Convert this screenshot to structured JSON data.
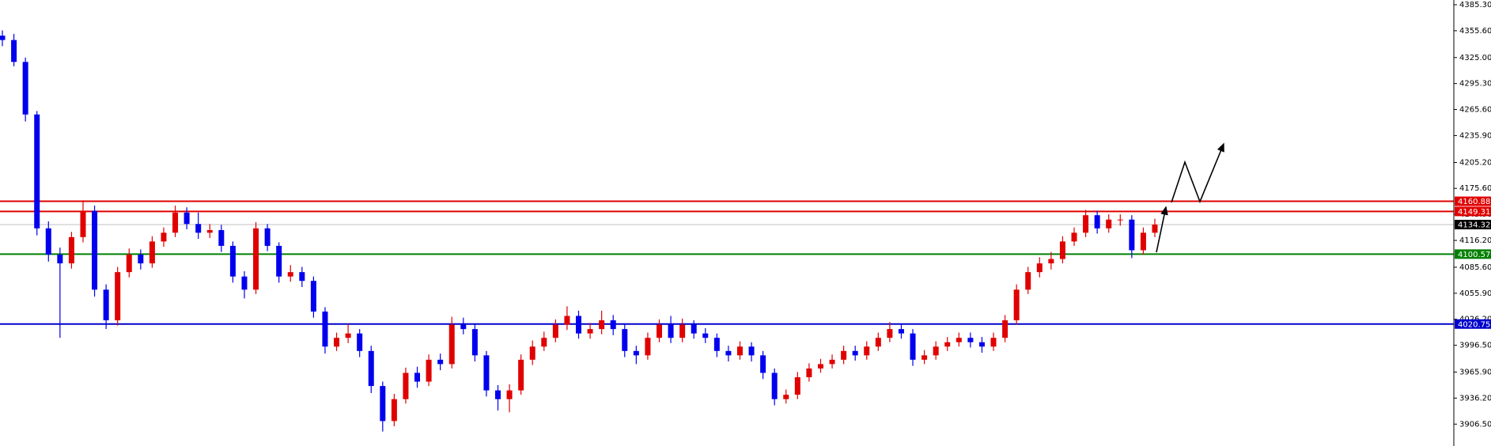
{
  "chart_data": {
    "type": "candlestick",
    "up_color": "#e00000",
    "down_color": "#0000ee",
    "ylim": [
      3881.5,
      4390.7
    ],
    "yticks": [
      {
        "value": 4385.3,
        "label": "4385.30"
      },
      {
        "value": 4355.6,
        "label": "4355.60"
      },
      {
        "value": 4325.0,
        "label": "4325.00"
      },
      {
        "value": 4295.3,
        "label": "4295.30"
      },
      {
        "value": 4265.6,
        "label": "4265.60"
      },
      {
        "value": 4235.9,
        "label": "4235.90"
      },
      {
        "value": 4205.2,
        "label": "4205.20"
      },
      {
        "value": 4175.6,
        "label": "4175.60"
      },
      {
        "value": 4145.9,
        "label": "4145.90"
      },
      {
        "value": 4116.2,
        "label": "4116.20"
      },
      {
        "value": 4085.6,
        "label": "4085.60"
      },
      {
        "value": 4055.9,
        "label": "4055.90"
      },
      {
        "value": 4026.2,
        "label": "4026.20"
      },
      {
        "value": 3996.5,
        "label": "3996.50"
      },
      {
        "value": 3965.9,
        "label": "3965.90"
      },
      {
        "value": 3936.2,
        "label": "3936.20"
      },
      {
        "value": 3906.5,
        "label": "3906.50"
      }
    ],
    "lines": [
      {
        "value": 4160.88,
        "color": "#e00000"
      },
      {
        "value": 4149.31,
        "color": "#e00000"
      },
      {
        "value": 4134.32,
        "color": "#c0c0c0"
      },
      {
        "value": 4100.57,
        "color": "#008000"
      },
      {
        "value": 4020.75,
        "color": "#0000cc"
      }
    ],
    "open": [
      4350,
      4345,
      4320,
      4260,
      4130,
      4100,
      4090,
      4120,
      4150,
      4060,
      4025,
      4080,
      4100,
      4090,
      4115,
      4125,
      4148,
      4135,
      4125,
      4128,
      4110,
      4075,
      4060,
      4130,
      4110,
      4075,
      4080,
      4070,
      4035,
      3995,
      4005,
      4010,
      3990,
      3950,
      3910,
      3935,
      3965,
      3955,
      3980,
      3975,
      4020,
      4015,
      3985,
      3945,
      3935,
      3945,
      3980,
      3995,
      4005,
      4020,
      4030,
      4010,
      4015,
      4025,
      4015,
      3990,
      3985,
      4005,
      4020,
      4005,
      4020,
      4010,
      4005,
      3990,
      3985,
      3995,
      3985,
      3965,
      3935,
      3940,
      3960,
      3970,
      3975,
      3980,
      3990,
      3985,
      3995,
      4005,
      4015,
      4010,
      3980,
      3985,
      3995,
      4000,
      4005,
      4000,
      3995,
      4005,
      4025,
      4060,
      4080,
      4090,
      4095,
      4115,
      4125,
      4145,
      4130,
      4140,
      4140,
      4105,
      4125
    ],
    "high": [
      4356,
      4352,
      4325,
      4264,
      4138,
      4108,
      4126,
      4162,
      4156,
      4066,
      4086,
      4107,
      4106,
      4121,
      4131,
      4156,
      4154,
      4148,
      4135,
      4134,
      4115,
      4081,
      4137,
      4135,
      4114,
      4088,
      4086,
      4075,
      4040,
      4011,
      4021,
      4015,
      3996,
      3955,
      3941,
      3971,
      3972,
      3986,
      3987,
      4029,
      4028,
      4020,
      3990,
      3951,
      3952,
      3986,
      4002,
      4012,
      4026,
      4041,
      4036,
      4022,
      4036,
      4031,
      4020,
      3996,
      4011,
      4026,
      4030,
      4027,
      4025,
      4016,
      4010,
      3996,
      4001,
      4000,
      3990,
      3970,
      3946,
      3966,
      3976,
      3981,
      3986,
      3996,
      3996,
      4001,
      4011,
      4023,
      4021,
      4015,
      3991,
      4001,
      4006,
      4011,
      4011,
      4006,
      4011,
      4031,
      4066,
      4086,
      4097,
      4103,
      4121,
      4131,
      4151,
      4150,
      4146,
      4146,
      4145,
      4131,
      4141
    ],
    "low": [
      4338,
      4315,
      4252,
      4122,
      4092,
      4005,
      4084,
      4114,
      4052,
      4015,
      4019,
      4074,
      4083,
      4085,
      4109,
      4120,
      4129,
      4118,
      4119,
      4103,
      4068,
      4050,
      4055,
      4104,
      4068,
      4069,
      4063,
      4028,
      3987,
      3990,
      3999,
      3983,
      3942,
      3898,
      3904,
      3930,
      3948,
      3950,
      3968,
      3970,
      4009,
      3978,
      3938,
      3922,
      3920,
      3940,
      3974,
      3990,
      4000,
      4014,
      4004,
      4004,
      4009,
      4008,
      3983,
      3975,
      3980,
      4000,
      3999,
      4000,
      4004,
      3999,
      3983,
      3978,
      3980,
      3978,
      3958,
      3928,
      3930,
      3935,
      3955,
      3965,
      3970,
      3975,
      3979,
      3980,
      3990,
      4000,
      4004,
      3973,
      3975,
      3980,
      3990,
      3995,
      3994,
      3988,
      3990,
      4000,
      4020,
      4055,
      4074,
      4083,
      4090,
      4110,
      4120,
      4124,
      4125,
      4133,
      4096,
      4100,
      4120
    ],
    "close": [
      4345,
      4320,
      4260,
      4130,
      4100,
      4090,
      4120,
      4150,
      4060,
      4025,
      4080,
      4100,
      4090,
      4115,
      4125,
      4148,
      4135,
      4125,
      4128,
      4110,
      4075,
      4060,
      4130,
      4110,
      4075,
      4080,
      4070,
      4035,
      3995,
      4005,
      4010,
      3990,
      3950,
      3910,
      3935,
      3965,
      3955,
      3980,
      3975,
      4020,
      4015,
      3985,
      3945,
      3935,
      3945,
      3980,
      3995,
      4005,
      4020,
      4030,
      4010,
      4015,
      4025,
      4015,
      3990,
      3985,
      4005,
      4020,
      4005,
      4020,
      4010,
      4005,
      3990,
      3985,
      3995,
      3985,
      3965,
      3935,
      3940,
      3960,
      3970,
      3975,
      3980,
      3990,
      3985,
      3995,
      4005,
      4015,
      4010,
      3980,
      3985,
      3995,
      4000,
      4005,
      4000,
      3995,
      4005,
      4025,
      4060,
      4080,
      4090,
      4095,
      4115,
      4125,
      4145,
      4130,
      4140,
      4140,
      4105,
      4125,
      4134.32
    ]
  }
}
